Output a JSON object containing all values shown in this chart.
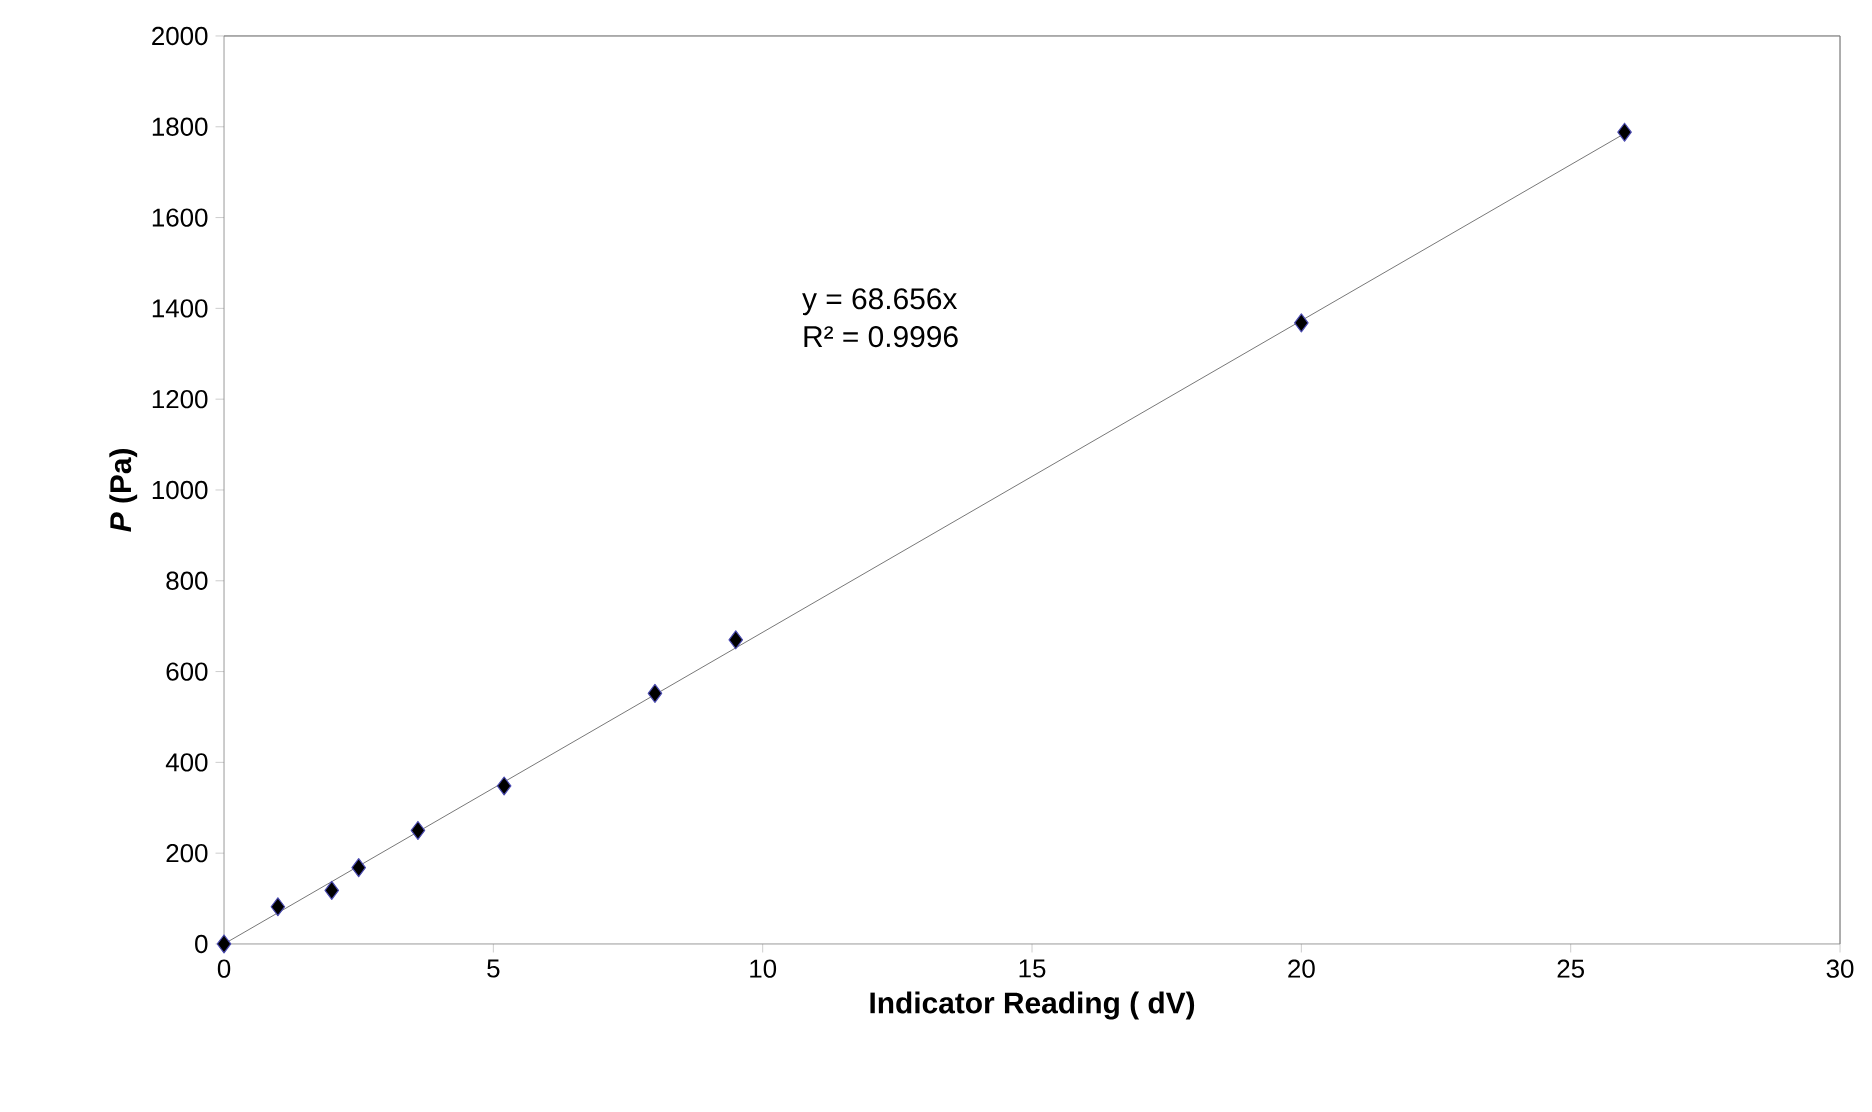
{
  "chart_data": {
    "type": "scatter",
    "xlabel": "Indicator Reading ( dV)",
    "ylabel": "*P* (Pa)",
    "annotations": [
      "y = 68.656x",
      "R² = 0.9996"
    ],
    "series": [
      {
        "color": "#000000",
        "marker": "diamond",
        "x": [
          0,
          1,
          2,
          2.5,
          3.6,
          5.2,
          8,
          9.5,
          20,
          26
        ],
        "values": [
          0,
          82,
          118,
          168,
          250,
          348,
          552,
          670,
          1368,
          1788
        ]
      },
      {
        "type": "line",
        "color": "#555555",
        "marker": "none",
        "x": [
          0,
          26
        ],
        "values": [
          0,
          1785
        ]
      }
    ],
    "xlim": [
      0,
      30
    ],
    "ylim": [
      0,
      2000
    ],
    "xticks": [
      0,
      5,
      10,
      15,
      20,
      25,
      30
    ],
    "yticks": [
      0,
      200,
      400,
      600,
      800,
      1000,
      1200,
      1400,
      1600,
      1800,
      2000
    ],
    "grid": false
  }
}
